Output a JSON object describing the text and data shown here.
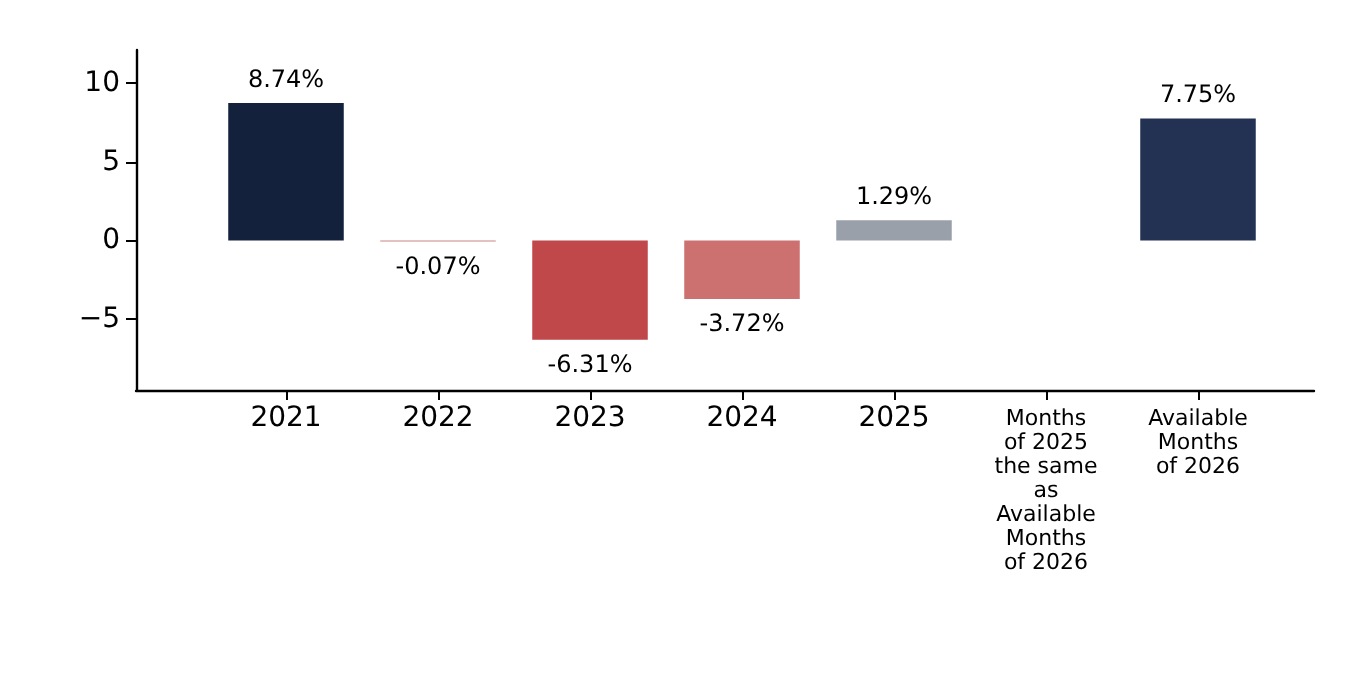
{
  "chart_data": {
    "type": "bar",
    "categories": [
      "2021",
      "2022",
      "2023",
      "2024",
      "2025",
      "Months\nof 2025\nthe same\nas\nAvailable\nMonths\nof 2026",
      "Available\nMonths\nof 2026"
    ],
    "values": [
      8.74,
      -0.07,
      -6.31,
      -3.72,
      1.29,
      null,
      7.75
    ],
    "colors": [
      "#14213d",
      "#c98585",
      "#c0474a",
      "#cc7070",
      "#9aa0aa",
      "#9aa0aa",
      "#233152"
    ],
    "value_labels": [
      "8.74%",
      "-0.07%",
      "-6.31%",
      "-3.72%",
      "1.29%",
      null,
      "7.75%"
    ],
    "ylim": [
      -9.5,
      12.1
    ],
    "yticks": [
      -5,
      0,
      5,
      10
    ],
    "grid": false
  }
}
